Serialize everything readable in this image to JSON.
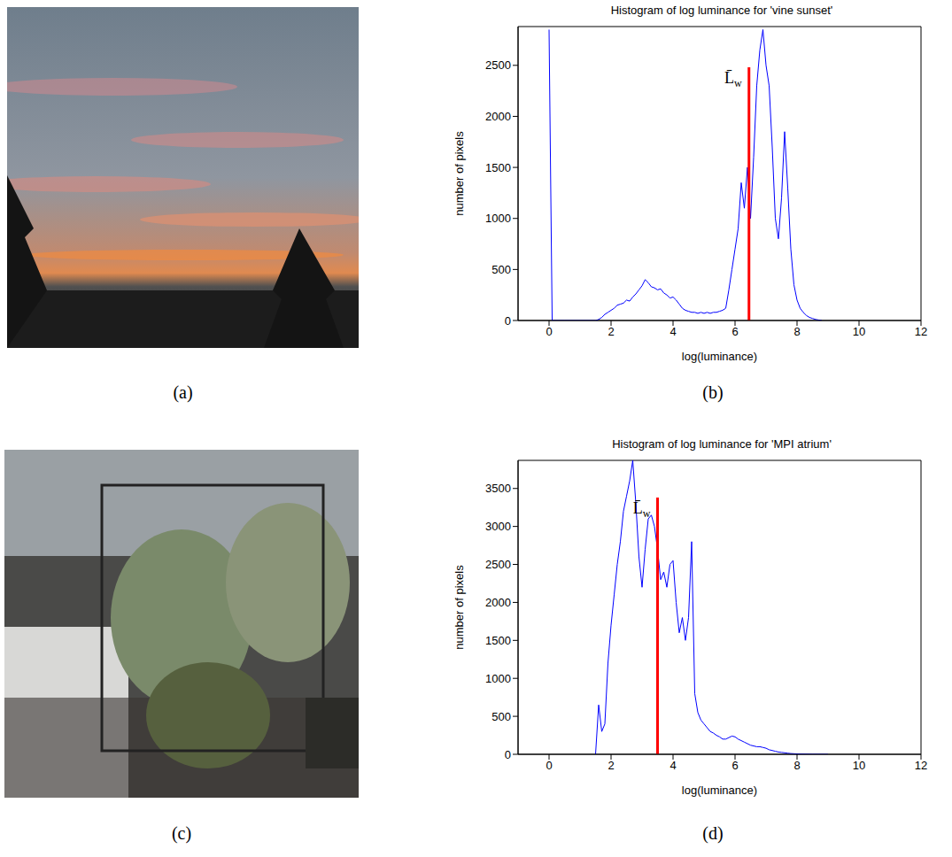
{
  "panel_labels": [
    "(a)",
    "(b)",
    "(c)",
    "(d)"
  ],
  "chart_data": [
    {
      "type": "line",
      "title": "Histogram of log luminance for 'vine sunset'",
      "xlabel": "log(luminance)",
      "ylabel": "number of pixels",
      "color": "#0000ff",
      "x": [
        0,
        0.1,
        0.5,
        1.0,
        1.5,
        1.6,
        1.7,
        1.8,
        1.9,
        2.0,
        2.1,
        2.2,
        2.3,
        2.4,
        2.5,
        2.6,
        2.7,
        2.8,
        2.9,
        3.0,
        3.1,
        3.2,
        3.3,
        3.4,
        3.5,
        3.6,
        3.7,
        3.8,
        3.9,
        4.0,
        4.1,
        4.2,
        4.3,
        4.4,
        4.5,
        4.6,
        4.7,
        4.8,
        4.9,
        5.0,
        5.1,
        5.2,
        5.3,
        5.4,
        5.5,
        5.6,
        5.7,
        5.8,
        5.9,
        6.0,
        6.1,
        6.2,
        6.3,
        6.4,
        6.5,
        6.6,
        6.7,
        6.8,
        6.9,
        7.0,
        7.1,
        7.2,
        7.3,
        7.4,
        7.5,
        7.6,
        7.7,
        7.8,
        7.9,
        8.0,
        8.1,
        8.2,
        8.3,
        8.4,
        8.5,
        8.6,
        8.7,
        8.8
      ],
      "values": [
        2850,
        0,
        0,
        0,
        0,
        10,
        30,
        60,
        80,
        100,
        120,
        150,
        160,
        170,
        200,
        190,
        230,
        260,
        300,
        340,
        400,
        370,
        330,
        320,
        300,
        310,
        270,
        250,
        220,
        230,
        200,
        160,
        120,
        100,
        90,
        80,
        80,
        70,
        80,
        70,
        80,
        70,
        80,
        80,
        90,
        100,
        120,
        300,
        500,
        700,
        900,
        1350,
        1100,
        1500,
        1000,
        1600,
        2300,
        2650,
        2850,
        2500,
        2300,
        1700,
        1000,
        800,
        1200,
        1850,
        1300,
        700,
        350,
        200,
        120,
        80,
        50,
        30,
        20,
        10,
        5,
        0
      ],
      "xlim": [
        -1,
        12
      ],
      "xticks": [
        0,
        2,
        4,
        6,
        8,
        10,
        12
      ],
      "ylim": [
        0,
        2880
      ],
      "yticks": [
        0,
        500,
        1000,
        1500,
        2000,
        2500
      ],
      "grid": false,
      "annotations": [
        {
          "text": "L̄w",
          "x": 6.45,
          "y": 2480,
          "color": "#ff0000"
        }
      ]
    },
    {
      "type": "line",
      "title": "Histogram of log luminance for 'MPI atrium'",
      "xlabel": "log(luminance)",
      "ylabel": "number of pixels",
      "color": "#0000ff",
      "x": [
        1.5,
        1.6,
        1.7,
        1.8,
        1.9,
        2.0,
        2.1,
        2.2,
        2.3,
        2.4,
        2.5,
        2.6,
        2.7,
        2.8,
        2.9,
        3.0,
        3.1,
        3.2,
        3.3,
        3.4,
        3.5,
        3.6,
        3.7,
        3.8,
        3.9,
        4.0,
        4.1,
        4.2,
        4.3,
        4.4,
        4.5,
        4.6,
        4.7,
        4.8,
        4.9,
        5.0,
        5.1,
        5.2,
        5.3,
        5.4,
        5.5,
        5.6,
        5.7,
        5.8,
        5.9,
        6.0,
        6.1,
        6.2,
        6.3,
        6.4,
        6.5,
        6.6,
        6.7,
        6.8,
        6.9,
        7.0,
        7.1,
        7.2,
        7.3,
        7.4,
        7.5,
        7.6,
        7.7,
        7.8,
        7.9,
        8.0,
        8.2,
        8.5,
        9.0
      ],
      "values": [
        0,
        650,
        300,
        400,
        1200,
        1700,
        2100,
        2500,
        2800,
        3200,
        3400,
        3600,
        3870,
        3300,
        2600,
        2200,
        2700,
        3100,
        3150,
        3000,
        2700,
        2300,
        2400,
        2200,
        2500,
        2550,
        2000,
        1600,
        1800,
        1500,
        1800,
        2800,
        800,
        550,
        450,
        400,
        350,
        300,
        280,
        250,
        230,
        200,
        200,
        220,
        240,
        230,
        200,
        180,
        160,
        140,
        120,
        110,
        100,
        100,
        90,
        80,
        60,
        50,
        40,
        30,
        25,
        20,
        15,
        10,
        8,
        5,
        3,
        1,
        0
      ],
      "xlim": [
        -1,
        12
      ],
      "xticks": [
        0,
        2,
        4,
        6,
        8,
        10,
        12
      ],
      "ylim": [
        0,
        3870
      ],
      "yticks": [
        0,
        500,
        1000,
        1500,
        2000,
        2500,
        3000,
        3500
      ],
      "grid": false,
      "annotations": [
        {
          "text": "L̄w",
          "x": 3.5,
          "y": 3380,
          "color": "#ff0000"
        }
      ]
    }
  ]
}
